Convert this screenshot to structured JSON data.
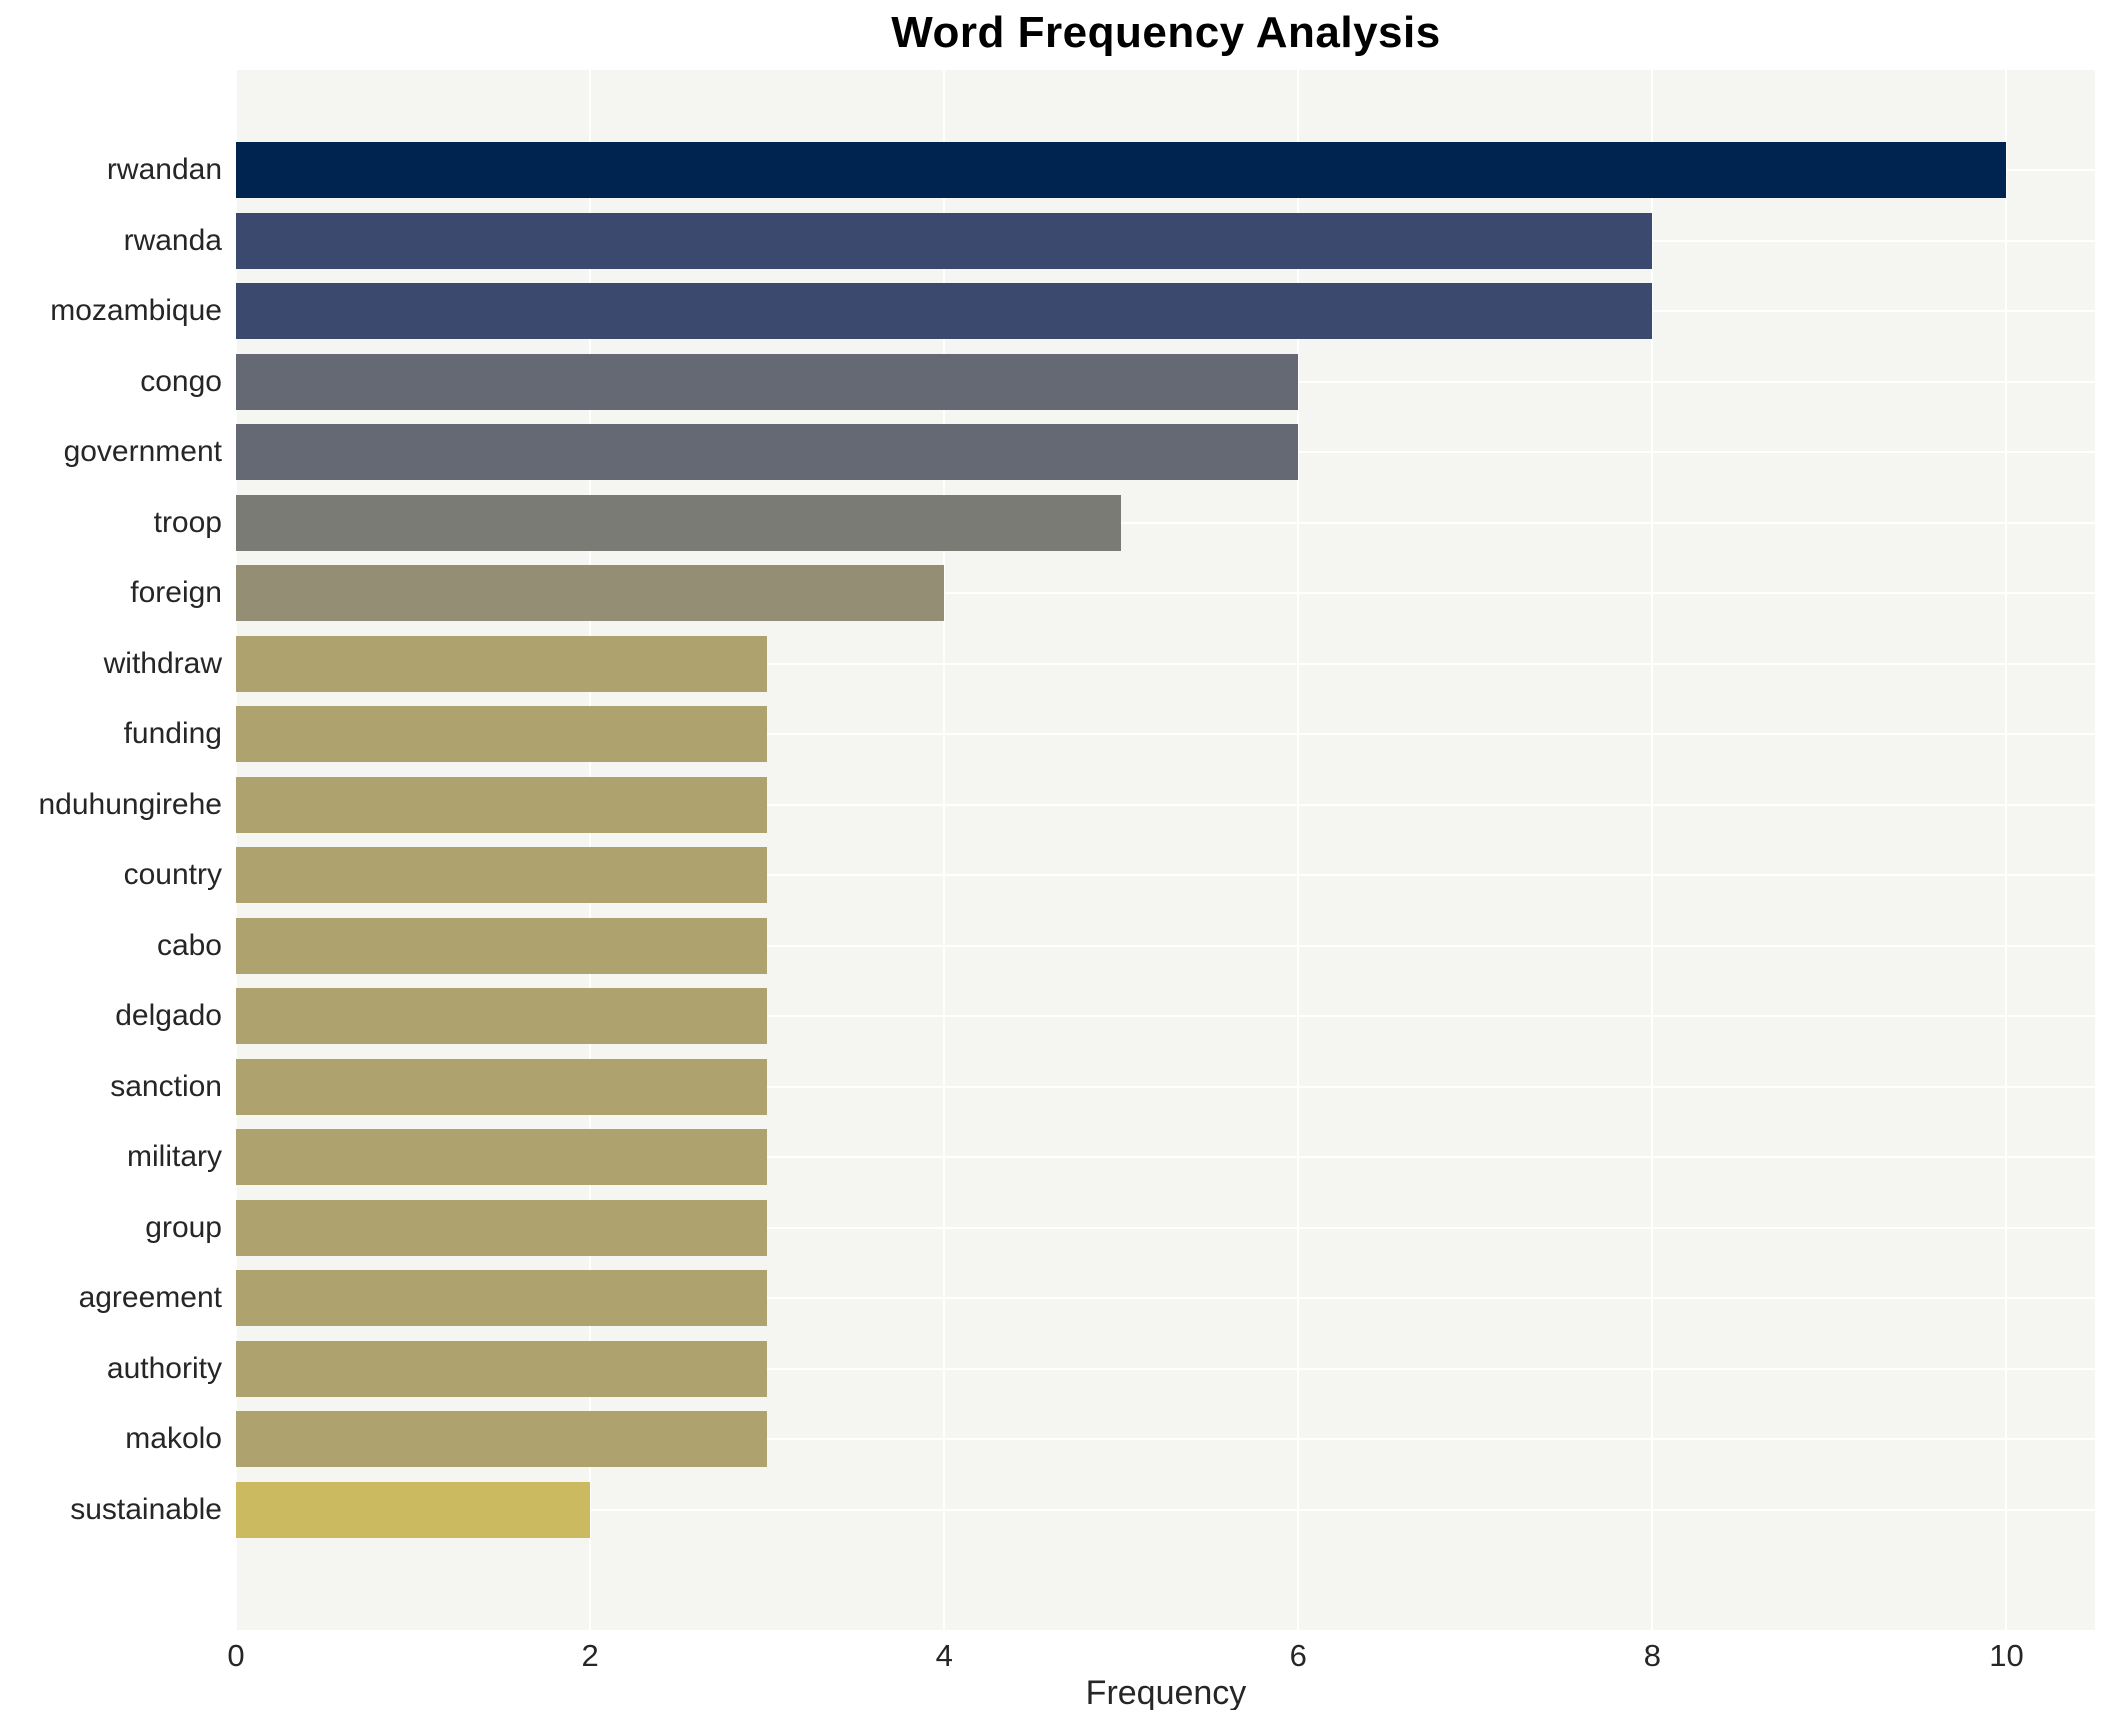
{
  "header": {
    "title": "Word Frequency Analysis"
  },
  "axes": {
    "xlabel": "Frequency",
    "x_ticks": [
      0,
      2,
      4,
      6,
      8,
      10
    ]
  },
  "colors": {
    "figure_bg": "#ffffff",
    "plot_bg": "#f5f5f2",
    "gridline": "#ffffff",
    "text": "#262626",
    "title_text": "#000000"
  },
  "chart_data": {
    "type": "bar",
    "orientation": "horizontal",
    "title": "Word Frequency Analysis",
    "xlabel": "Frequency",
    "ylabel": "",
    "xlim": [
      0,
      10.5
    ],
    "grid": true,
    "legend": false,
    "categories": [
      "rwandan",
      "rwanda",
      "mozambique",
      "congo",
      "government",
      "troop",
      "foreign",
      "withdraw",
      "funding",
      "nduhungirehe",
      "country",
      "cabo",
      "delgado",
      "sanction",
      "military",
      "group",
      "agreement",
      "authority",
      "makolo",
      "sustainable"
    ],
    "values": [
      10,
      8,
      8,
      6,
      6,
      5,
      4,
      3,
      3,
      3,
      3,
      3,
      3,
      3,
      3,
      3,
      3,
      3,
      3,
      2
    ],
    "bar_colors": [
      "#002450",
      "#3a496d",
      "#3a496d",
      "#646973",
      "#646973",
      "#7b7b76",
      "#948e74",
      "#aea26f",
      "#aea26f",
      "#aea26f",
      "#aea26f",
      "#aea26f",
      "#aea26f",
      "#aea26f",
      "#aea26f",
      "#aea26f",
      "#aea26f",
      "#aea26f",
      "#aea26f",
      "#ccba61"
    ]
  }
}
